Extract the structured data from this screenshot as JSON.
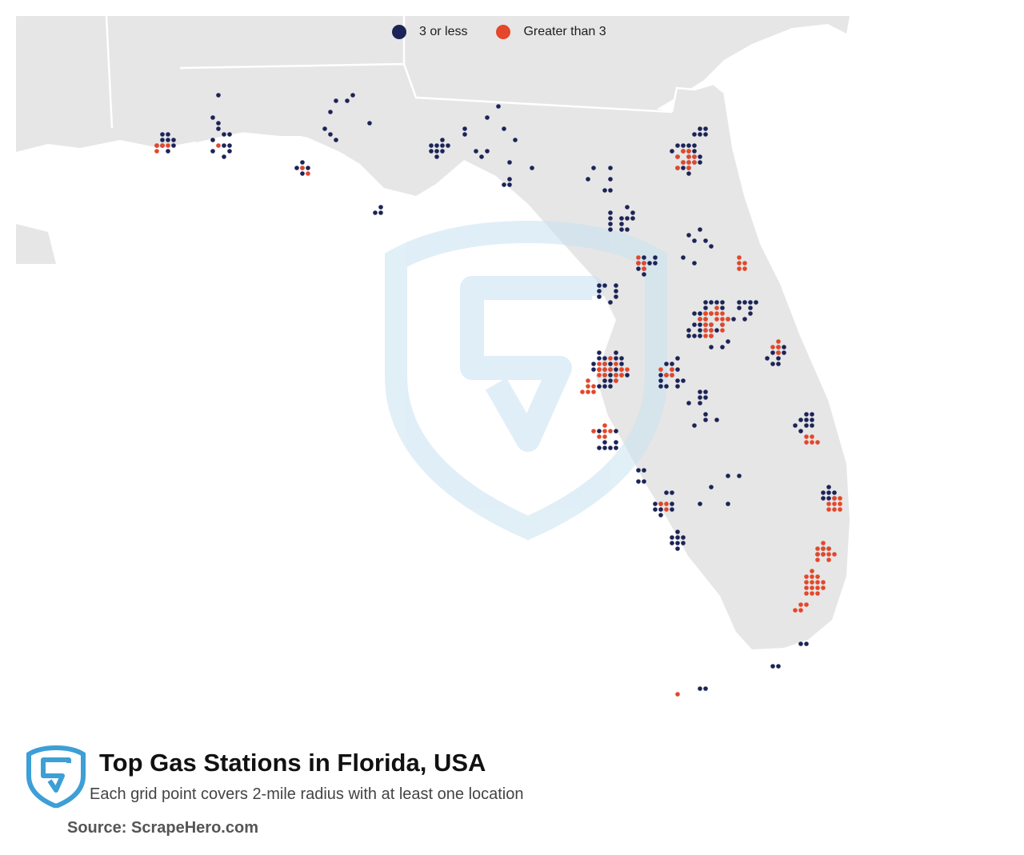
{
  "legend": {
    "items": [
      {
        "label": "3 or less",
        "color": "#1c2457"
      },
      {
        "label": "Greater than 3",
        "color": "#e4472a"
      }
    ]
  },
  "title": "Top Gas Stations in Florida, USA",
  "subtitle": "Each grid point covers 2-mile radius with at least one location",
  "source": "Source: ScrapeHero.com",
  "colors": {
    "land": "#e6e6e6",
    "borders": "#ffffff",
    "watermark": "#d3e9f5",
    "logo": "#3d9fd6"
  },
  "chart_data": {
    "type": "scatter",
    "series": [
      {
        "name": "3 or less",
        "color": "#1c2457",
        "clusters": [
          {
            "lat": 30.5,
            "lon": -87.2,
            "n": 14,
            "spread": 0.12
          },
          {
            "lat": 30.42,
            "lon": -86.6,
            "n": 8,
            "spread": 0.1
          },
          {
            "lat": 30.75,
            "lon": -86.5,
            "n": 6,
            "spread": 0.25
          },
          {
            "lat": 30.2,
            "lon": -85.7,
            "n": 9,
            "spread": 0.08
          },
          {
            "lat": 30.75,
            "lon": -85.3,
            "n": 8,
            "spread": 0.28
          },
          {
            "lat": 30.45,
            "lon": -84.28,
            "n": 18,
            "spread": 0.1
          },
          {
            "lat": 30.6,
            "lon": -83.7,
            "n": 10,
            "spread": 0.3
          },
          {
            "lat": 30.2,
            "lon": -83.5,
            "n": 6,
            "spread": 0.2
          },
          {
            "lat": 29.75,
            "lon": -84.9,
            "n": 4,
            "spread": 0.1
          },
          {
            "lat": 30.33,
            "lon": -81.66,
            "n": 30,
            "spread": 0.16
          },
          {
            "lat": 30.6,
            "lon": -81.5,
            "n": 8,
            "spread": 0.06
          },
          {
            "lat": 29.65,
            "lon": -82.35,
            "n": 16,
            "spread": 0.14
          },
          {
            "lat": 30.1,
            "lon": -82.5,
            "n": 6,
            "spread": 0.2
          },
          {
            "lat": 29.2,
            "lon": -82.1,
            "n": 14,
            "spread": 0.14
          },
          {
            "lat": 28.9,
            "lon": -82.5,
            "n": 10,
            "spread": 0.12
          },
          {
            "lat": 29.4,
            "lon": -81.6,
            "n": 8,
            "spread": 0.2
          },
          {
            "lat": 28.55,
            "lon": -81.38,
            "n": 40,
            "spread": 0.26
          },
          {
            "lat": 28.05,
            "lon": -82.45,
            "n": 40,
            "spread": 0.2
          },
          {
            "lat": 28.0,
            "lon": -81.8,
            "n": 22,
            "spread": 0.16
          },
          {
            "lat": 27.6,
            "lon": -81.5,
            "n": 10,
            "spread": 0.2
          },
          {
            "lat": 27.3,
            "lon": -82.5,
            "n": 14,
            "spread": 0.12
          },
          {
            "lat": 26.9,
            "lon": -82.1,
            "n": 6,
            "spread": 0.1
          },
          {
            "lat": 26.6,
            "lon": -81.9,
            "n": 14,
            "spread": 0.12
          },
          {
            "lat": 26.2,
            "lon": -81.75,
            "n": 16,
            "spread": 0.1
          },
          {
            "lat": 26.7,
            "lon": -81.3,
            "n": 6,
            "spread": 0.3
          },
          {
            "lat": 28.2,
            "lon": -80.7,
            "n": 12,
            "spread": 0.1
          },
          {
            "lat": 28.7,
            "lon": -81.0,
            "n": 10,
            "spread": 0.12
          },
          {
            "lat": 27.5,
            "lon": -80.4,
            "n": 12,
            "spread": 0.12
          },
          {
            "lat": 26.7,
            "lon": -80.15,
            "n": 18,
            "spread": 0.08
          },
          {
            "lat": 26.1,
            "lon": -80.2,
            "n": 10,
            "spread": 0.05
          },
          {
            "lat": 24.85,
            "lon": -80.7,
            "n": 4,
            "spread": 0.05
          },
          {
            "lat": 24.6,
            "lon": -81.5,
            "n": 4,
            "spread": 0.05
          },
          {
            "lat": 25.1,
            "lon": -80.43,
            "n": 3,
            "spread": 0.05
          }
        ]
      },
      {
        "name": "Greater than 3",
        "color": "#e4472a",
        "clusters": [
          {
            "lat": 30.45,
            "lon": -87.22,
            "n": 6,
            "spread": 0.06
          },
          {
            "lat": 30.2,
            "lon": -85.7,
            "n": 5,
            "spread": 0.06
          },
          {
            "lat": 30.44,
            "lon": -86.6,
            "n": 2,
            "spread": 0.05
          },
          {
            "lat": 30.33,
            "lon": -81.66,
            "n": 24,
            "spread": 0.12
          },
          {
            "lat": 29.2,
            "lon": -81.05,
            "n": 8,
            "spread": 0.08
          },
          {
            "lat": 29.18,
            "lon": -82.14,
            "n": 5,
            "spread": 0.06
          },
          {
            "lat": 28.55,
            "lon": -81.38,
            "n": 30,
            "spread": 0.16
          },
          {
            "lat": 28.05,
            "lon": -82.45,
            "n": 26,
            "spread": 0.14
          },
          {
            "lat": 27.85,
            "lon": -82.7,
            "n": 10,
            "spread": 0.08
          },
          {
            "lat": 28.05,
            "lon": -81.9,
            "n": 6,
            "spread": 0.08
          },
          {
            "lat": 27.4,
            "lon": -82.55,
            "n": 10,
            "spread": 0.08
          },
          {
            "lat": 26.6,
            "lon": -81.9,
            "n": 8,
            "spread": 0.06
          },
          {
            "lat": 28.3,
            "lon": -80.7,
            "n": 6,
            "spread": 0.06
          },
          {
            "lat": 27.3,
            "lon": -80.35,
            "n": 5,
            "spread": 0.06
          },
          {
            "lat": 26.6,
            "lon": -80.08,
            "n": 22,
            "spread": 0.08
          },
          {
            "lat": 26.1,
            "lon": -80.2,
            "n": 30,
            "spread": 0.1
          },
          {
            "lat": 25.75,
            "lon": -80.3,
            "n": 40,
            "spread": 0.12
          },
          {
            "lat": 25.5,
            "lon": -80.45,
            "n": 8,
            "spread": 0.06
          },
          {
            "lat": 24.56,
            "lon": -81.78,
            "n": 1,
            "spread": 0.02
          }
        ]
      }
    ]
  }
}
